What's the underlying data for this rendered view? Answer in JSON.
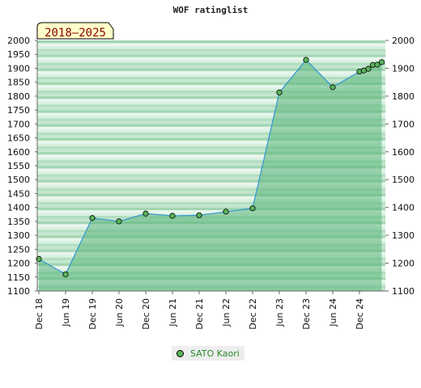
{
  "chart_data": {
    "type": "area",
    "title": "WOF ratinglist",
    "period_label": "2018–2025",
    "y_ticks": [
      1100,
      1150,
      1200,
      1250,
      1300,
      1350,
      1400,
      1450,
      1500,
      1550,
      1600,
      1650,
      1700,
      1750,
      1800,
      1850,
      1900,
      1950,
      2000
    ],
    "y_ticks_right": [
      1100,
      1200,
      1300,
      1400,
      1500,
      1600,
      1700,
      1800,
      1900,
      2000
    ],
    "ylim": [
      1100,
      2000
    ],
    "x_tick_labels": [
      "Dec 18",
      "Jun 19",
      "Dec 19",
      "Jun 20",
      "Dec 20",
      "Jun 21",
      "Dec 21",
      "Jun 22",
      "Dec 22",
      "Jun 23",
      "Dec 23",
      "Jun 24",
      "Dec 24"
    ],
    "series": [
      {
        "name": "SATO Kaori",
        "color": "#5ab45a",
        "x": [
          "2018-12",
          "2019-06",
          "2019-12",
          "2020-06",
          "2020-12",
          "2021-06",
          "2021-12",
          "2022-06",
          "2022-12",
          "2023-06",
          "2023-12",
          "2024-06",
          "2024-12",
          "2025-01",
          "2025-02",
          "2025-03",
          "2025-04",
          "2025-05"
        ],
        "values": [
          1215,
          1160,
          1362,
          1350,
          1378,
          1370,
          1372,
          1385,
          1397,
          1813,
          1930,
          1832,
          1888,
          1892,
          1898,
          1912,
          1913,
          1922
        ]
      }
    ],
    "grid": true,
    "legend_position": "bottom-center"
  }
}
